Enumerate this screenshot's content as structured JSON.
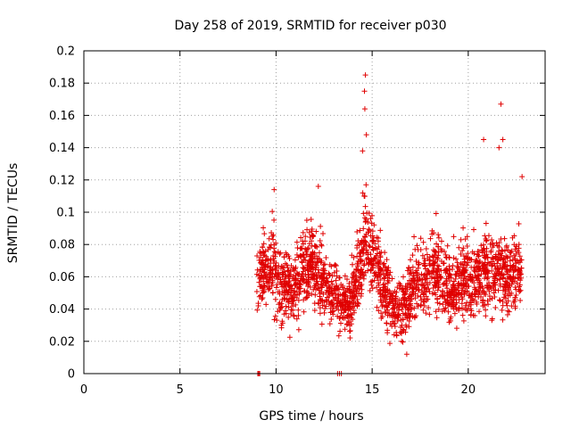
{
  "chart_data": {
    "type": "scatter",
    "title": "Day 258 of 2019, SRMTID for receiver p030",
    "xlabel": "GPS time / hours",
    "ylabel": "SRMTID / TECUs",
    "xlim": [
      0,
      24
    ],
    "ylim": [
      0,
      0.2
    ],
    "xticks": [
      0,
      5,
      10,
      15,
      20
    ],
    "yticks": [
      0,
      0.02,
      0.04,
      0.06,
      0.08,
      0.1,
      0.12,
      0.14,
      0.16,
      0.18,
      0.2
    ],
    "ytick_labels": [
      "0",
      "0.02",
      "0.04",
      "0.06",
      "0.08",
      "0.1",
      "0.12",
      "0.14",
      "0.16",
      "0.18",
      "0.2"
    ],
    "grid": true,
    "marker": "+",
    "color": "#e00000",
    "data_range_hours": [
      9.0,
      22.8
    ],
    "zero_markers_x": [
      9.05,
      9.1,
      9.15,
      13.2,
      13.3,
      13.4
    ],
    "outliers": [
      {
        "x": 14.65,
        "y": 0.185
      },
      {
        "x": 14.6,
        "y": 0.175
      },
      {
        "x": 14.62,
        "y": 0.164
      },
      {
        "x": 14.7,
        "y": 0.148
      },
      {
        "x": 14.5,
        "y": 0.138
      },
      {
        "x": 21.7,
        "y": 0.167
      },
      {
        "x": 21.8,
        "y": 0.145
      },
      {
        "x": 20.8,
        "y": 0.145
      },
      {
        "x": 21.6,
        "y": 0.14
      },
      {
        "x": 22.8,
        "y": 0.122
      },
      {
        "x": 9.9,
        "y": 0.114
      },
      {
        "x": 12.2,
        "y": 0.116
      },
      {
        "x": 16.8,
        "y": 0.012
      }
    ],
    "series_trend": [
      {
        "x": 9.2,
        "y": 0.062,
        "spread": 0.02
      },
      {
        "x": 9.8,
        "y": 0.065,
        "spread": 0.022
      },
      {
        "x": 10.3,
        "y": 0.055,
        "spread": 0.02
      },
      {
        "x": 10.8,
        "y": 0.05,
        "spread": 0.02
      },
      {
        "x": 11.3,
        "y": 0.06,
        "spread": 0.02
      },
      {
        "x": 11.8,
        "y": 0.07,
        "spread": 0.022
      },
      {
        "x": 12.3,
        "y": 0.062,
        "spread": 0.022
      },
      {
        "x": 12.8,
        "y": 0.05,
        "spread": 0.018
      },
      {
        "x": 13.3,
        "y": 0.046,
        "spread": 0.016
      },
      {
        "x": 13.8,
        "y": 0.04,
        "spread": 0.014
      },
      {
        "x": 14.2,
        "y": 0.06,
        "spread": 0.02
      },
      {
        "x": 14.7,
        "y": 0.085,
        "spread": 0.028
      },
      {
        "x": 15.2,
        "y": 0.07,
        "spread": 0.022
      },
      {
        "x": 15.7,
        "y": 0.05,
        "spread": 0.018
      },
      {
        "x": 16.2,
        "y": 0.038,
        "spread": 0.014
      },
      {
        "x": 16.7,
        "y": 0.042,
        "spread": 0.016
      },
      {
        "x": 17.2,
        "y": 0.06,
        "spread": 0.022
      },
      {
        "x": 17.7,
        "y": 0.058,
        "spread": 0.02
      },
      {
        "x": 18.2,
        "y": 0.065,
        "spread": 0.022
      },
      {
        "x": 18.7,
        "y": 0.058,
        "spread": 0.02
      },
      {
        "x": 19.2,
        "y": 0.05,
        "spread": 0.02
      },
      {
        "x": 19.7,
        "y": 0.06,
        "spread": 0.022
      },
      {
        "x": 20.2,
        "y": 0.055,
        "spread": 0.022
      },
      {
        "x": 20.7,
        "y": 0.06,
        "spread": 0.024
      },
      {
        "x": 21.2,
        "y": 0.065,
        "spread": 0.024
      },
      {
        "x": 21.7,
        "y": 0.062,
        "spread": 0.024
      },
      {
        "x": 22.2,
        "y": 0.06,
        "spread": 0.022
      },
      {
        "x": 22.8,
        "y": 0.065,
        "spread": 0.024
      }
    ],
    "points_per_hour": 150
  }
}
